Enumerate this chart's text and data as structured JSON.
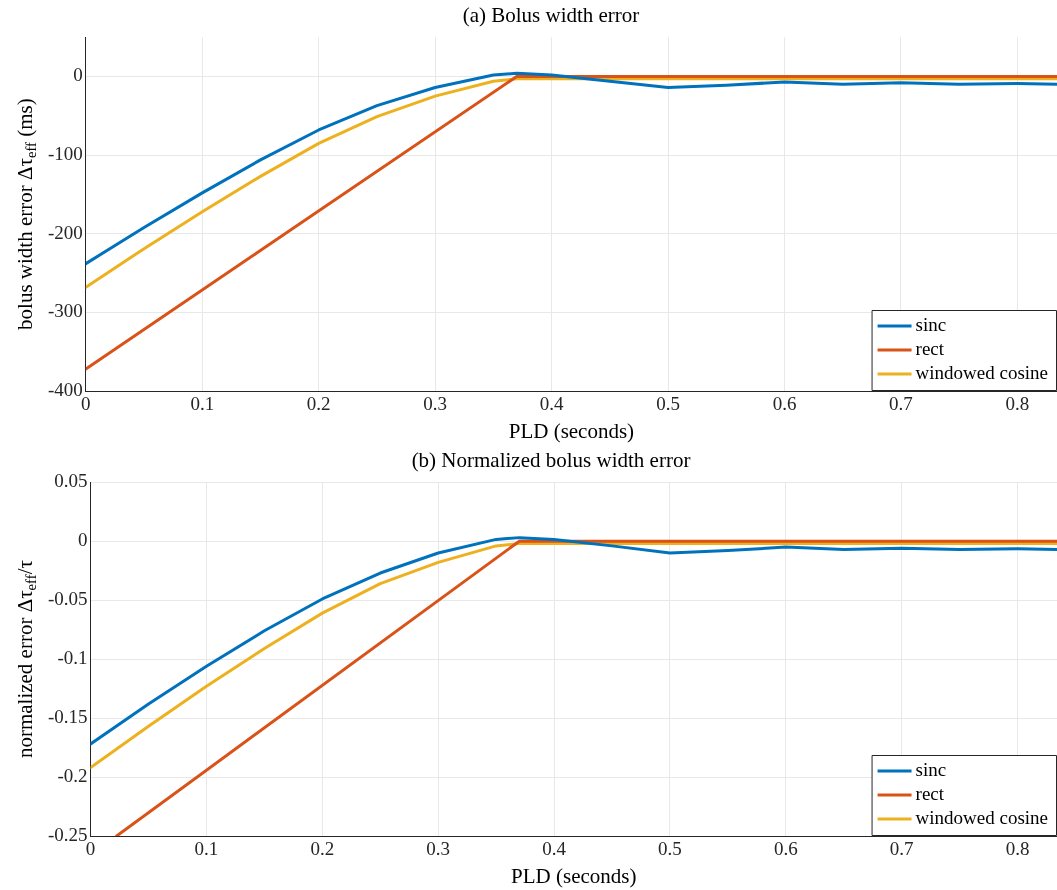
{
  "chart_data": [
    {
      "type": "line",
      "title": "(a) Bolus width error",
      "xlabel": "PLD (seconds)",
      "ylabel": "bolus width error Δτ$_{eff}$ (ms)",
      "xlim": [
        0,
        0.834
      ],
      "xticks": [
        0,
        0.1,
        0.2,
        0.3,
        0.4,
        0.5,
        0.6,
        0.7,
        0.8
      ],
      "ylim": [
        -400,
        50
      ],
      "yticks": [
        -400,
        -300,
        -200,
        -100,
        0
      ],
      "grid": true,
      "legend": "bottom right",
      "marker": "none",
      "line_style": "solid",
      "series": [
        {
          "name": "sinc",
          "color": "#0072bd",
          "x": [
            0,
            0.05,
            0.1,
            0.15,
            0.2,
            0.25,
            0.3,
            0.35,
            0.37,
            0.4,
            0.45,
            0.5,
            0.55,
            0.6,
            0.65,
            0.7,
            0.75,
            0.8,
            0.834
          ],
          "values": [
            -238,
            -192,
            -148,
            -106,
            -68,
            -37,
            -14,
            2,
            4,
            2,
            -6,
            -14,
            -11,
            -7,
            -10,
            -8,
            -10,
            -9,
            -10
          ]
        },
        {
          "name": "rect",
          "color": "#d95319",
          "x": [
            0,
            0.37,
            0.834
          ],
          "values": [
            -372,
            0,
            0
          ]
        },
        {
          "name": "windowed cosine",
          "color": "#edb120",
          "x": [
            0,
            0.05,
            0.1,
            0.15,
            0.2,
            0.25,
            0.3,
            0.35,
            0.37,
            0.834
          ],
          "values": [
            -268,
            -219,
            -172,
            -127,
            -85,
            -51,
            -25,
            -6,
            -3,
            -3
          ]
        }
      ]
    },
    {
      "type": "line",
      "title": "(b) Normalized bolus width error",
      "xlabel": "PLD (seconds)",
      "ylabel": "normalized error Δτ$_{eff}$/τ",
      "xlim": [
        0,
        0.834
      ],
      "xticks": [
        0,
        0.1,
        0.2,
        0.3,
        0.4,
        0.5,
        0.6,
        0.7,
        0.8
      ],
      "ylim": [
        -0.25,
        0.05
      ],
      "yticks": [
        -0.25,
        -0.2,
        -0.15,
        -0.1,
        -0.05,
        0,
        0.05
      ],
      "grid": true,
      "legend": "bottom right",
      "marker": "none",
      "line_style": "solid",
      "series": [
        {
          "name": "sinc",
          "color": "#0072bd",
          "x": [
            0,
            0.05,
            0.1,
            0.15,
            0.2,
            0.25,
            0.3,
            0.35,
            0.37,
            0.4,
            0.45,
            0.5,
            0.55,
            0.6,
            0.65,
            0.7,
            0.75,
            0.8,
            0.834
          ],
          "values": [
            -0.172,
            -0.138,
            -0.106,
            -0.076,
            -0.049,
            -0.027,
            -0.01,
            0.0015,
            0.003,
            0.0015,
            -0.004,
            -0.01,
            -0.008,
            -0.005,
            -0.007,
            -0.006,
            -0.007,
            -0.0065,
            -0.007
          ]
        },
        {
          "name": "rect",
          "color": "#d95319",
          "x": [
            0.0225,
            0.37,
            0.834
          ],
          "values": [
            -0.25,
            0,
            0
          ]
        },
        {
          "name": "windowed cosine",
          "color": "#edb120",
          "x": [
            0,
            0.05,
            0.1,
            0.15,
            0.2,
            0.25,
            0.3,
            0.35,
            0.37,
            0.834
          ],
          "values": [
            -0.192,
            -0.157,
            -0.123,
            -0.091,
            -0.061,
            -0.036,
            -0.018,
            -0.004,
            -0.002,
            -0.002
          ]
        }
      ]
    }
  ]
}
